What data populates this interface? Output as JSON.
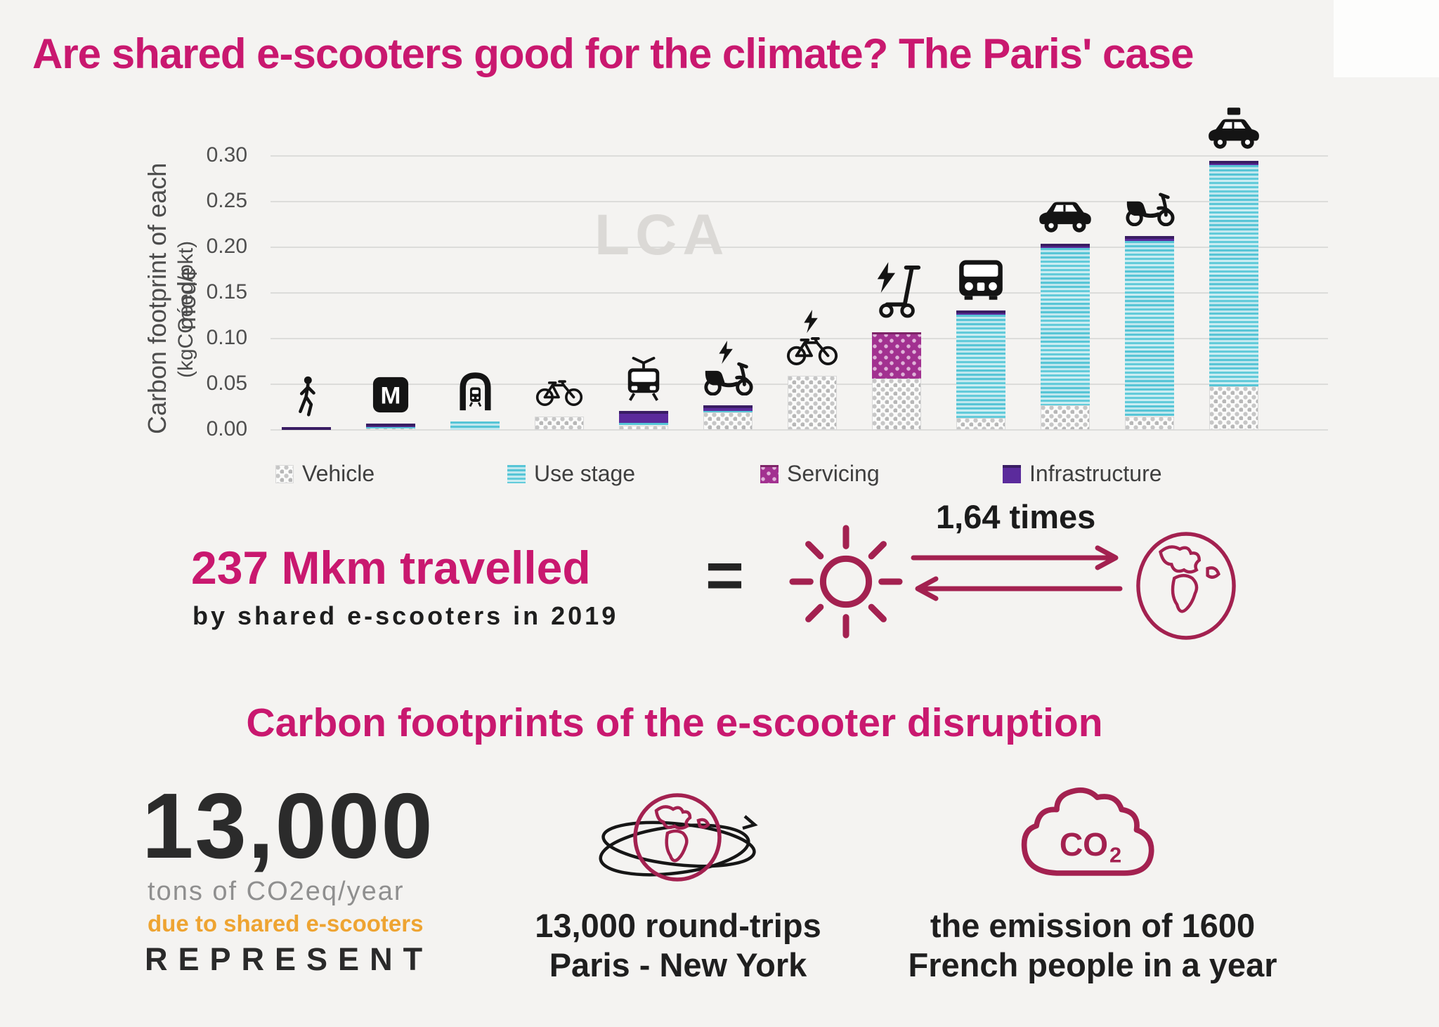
{
  "title": "Are shared e-scooters good for the climate? The Paris' case",
  "chart_data": {
    "type": "bar",
    "stacked": true,
    "watermark": "LCA",
    "ylabel_line1": "Carbon footprint of each mode",
    "ylabel_line2": "(kgCOéeq/pkt)",
    "yticks": [
      "0.30",
      "0.25",
      "0.20",
      "0.15",
      "0.10",
      "0.05",
      "0.00"
    ],
    "ylim": [
      0,
      0.32
    ],
    "grid": true,
    "legend_position": "bottom",
    "segments_order": [
      "vehicle",
      "use_stage",
      "servicing",
      "infrastructure"
    ],
    "legend": [
      {
        "key": "vehicle",
        "label": "Vehicle"
      },
      {
        "key": "use_stage",
        "label": "Use stage"
      },
      {
        "key": "servicing",
        "label": "Servicing"
      },
      {
        "key": "infrastructure",
        "label": "Infrastructure"
      }
    ],
    "categories": [
      {
        "mode": "walking",
        "icon": "walking-icon",
        "segments": {
          "infrastructure": 0.003
        },
        "total": 0.003
      },
      {
        "mode": "metro",
        "icon": "metro-icon",
        "segments": {
          "vehicle": 0.002,
          "use_stage": 0.001,
          "infrastructure": 0.004
        },
        "total": 0.007
      },
      {
        "mode": "suburban-train",
        "icon": "train-icon",
        "segments": {
          "use_stage": 0.009
        },
        "total": 0.009
      },
      {
        "mode": "bicycle",
        "icon": "bicycle-icon",
        "segments": {
          "vehicle": 0.015
        },
        "total": 0.015
      },
      {
        "mode": "tram",
        "icon": "tram-icon",
        "segments": {
          "vehicle": 0.005,
          "use_stage": 0.003,
          "infrastructure": 0.013
        },
        "total": 0.021
      },
      {
        "mode": "electric-moped",
        "icon": "e-moped-icon",
        "segments": {
          "vehicle": 0.019,
          "use_stage": 0.002,
          "infrastructure": 0.006
        },
        "total": 0.027
      },
      {
        "mode": "electric-bicycle",
        "icon": "e-bike-icon",
        "segments": {
          "vehicle": 0.059
        },
        "total": 0.059
      },
      {
        "mode": "shared-e-scooter",
        "icon": "e-scooter-icon",
        "segments": {
          "vehicle": 0.056,
          "servicing": 0.051
        },
        "total": 0.107
      },
      {
        "mode": "bus",
        "icon": "bus-icon",
        "segments": {
          "vehicle": 0.013,
          "use_stage": 0.113,
          "infrastructure": 0.005
        },
        "total": 0.131
      },
      {
        "mode": "car",
        "icon": "car-icon",
        "segments": {
          "vehicle": 0.027,
          "use_stage": 0.172,
          "infrastructure": 0.005
        },
        "total": 0.204
      },
      {
        "mode": "moped",
        "icon": "moped-icon",
        "segments": {
          "vehicle": 0.015,
          "use_stage": 0.192,
          "infrastructure": 0.005
        },
        "total": 0.212
      },
      {
        "mode": "taxi",
        "icon": "taxi-icon",
        "segments": {
          "vehicle": 0.048,
          "use_stage": 0.242,
          "infrastructure": 0.005
        },
        "total": 0.295
      }
    ]
  },
  "equivalence": {
    "headline": "237 Mkm travelled",
    "subline": "by shared e-scooters in 2019",
    "equals": "=",
    "times_label": "1,64 times",
    "left_icon": "sun-icon",
    "right_icon": "earth-icon"
  },
  "section2": {
    "heading": "Carbon footprints of the e-scooter disruption",
    "stat": {
      "value": "13,000",
      "unit": "tons of CO2eq/year",
      "cause": "due to shared e-scooters",
      "verb": "REPRESENT"
    },
    "equivalents": [
      {
        "icon": "globe-orbit-icon",
        "line1": "13,000 round-trips",
        "line2": "Paris - New York"
      },
      {
        "icon": "co2-cloud-icon",
        "icon_text": "CO",
        "icon_text_sub": "2",
        "line1": "the emission of 1600",
        "line2": "French people in a year"
      }
    ]
  },
  "colors": {
    "background": "#f4f3f1",
    "accent_magenta": "#c9186f",
    "crimson_icon": "#a32150",
    "orange": "#eea432",
    "use_stage_teal": "#5ac7d8",
    "servicing_magenta": "#a23190",
    "infrastructure_purple": "#5b2b9c",
    "vehicle_gray": "#c2c2c2",
    "text_dark": "#222222",
    "text_gray": "#8f8f8f"
  }
}
